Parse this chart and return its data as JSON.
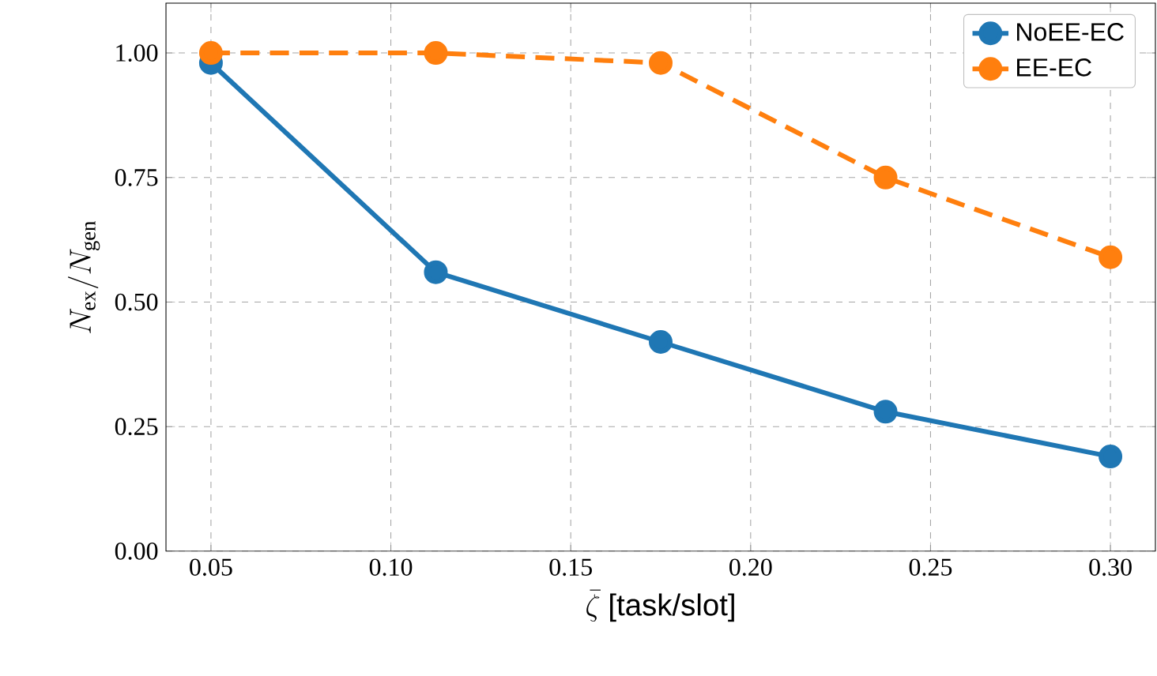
{
  "chart_data": {
    "type": "line",
    "xlabel": "\\bar{\\zeta}\\ \\textsf{[task/slot]}",
    "ylabel": "N_{\\mathrm{ex}}/N_{\\mathrm{gen}}",
    "x": [
      0.05,
      0.1125,
      0.175,
      0.2375,
      0.3
    ],
    "series": [
      {
        "name": "NoEE-EC",
        "color": "#1f77b4",
        "line_style": "solid",
        "values": [
          0.98,
          0.56,
          0.42,
          0.28,
          0.19
        ]
      },
      {
        "name": "EE-EC",
        "color": "#ff7f0e",
        "line_style": "dashed",
        "values": [
          1.0,
          1.0,
          0.98,
          0.75,
          0.59
        ]
      }
    ],
    "xlim": [
      0.0375,
      0.3125
    ],
    "ylim": [
      0,
      1.1
    ],
    "xticks": [
      0.05,
      {
        "value": 0.1,
        "label": "0.10"
      },
      0.15,
      {
        "value": 0.2,
        "label": "0.20"
      },
      0.25,
      {
        "value": 0.3,
        "label": "0.30"
      }
    ],
    "yticks": [
      {
        "value": 0,
        "label": "0.00"
      },
      {
        "value": 0.25,
        "label": "0.25"
      },
      {
        "value": 0.5,
        "label": "0.50"
      },
      {
        "value": 0.75,
        "label": "0.75"
      },
      {
        "value": 1,
        "label": "1.00"
      }
    ],
    "grid": true,
    "legend": "top right",
    "marker": "circle"
  }
}
